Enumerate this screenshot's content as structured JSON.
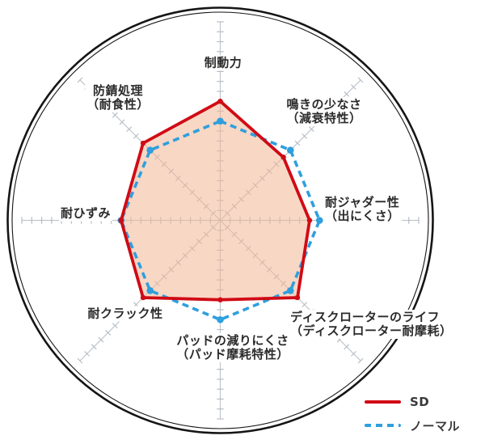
{
  "chart_data": {
    "type": "radar",
    "title": "",
    "start": "top",
    "direction": "clockwise",
    "axes": [
      "制動力",
      "鳴きの少なさ（減衰特性）",
      "耐ジャダー性（出にくさ）",
      "ディスクローターのライフ（ディスクローター耐摩耗）",
      "パッドの減りにくさ（パッド摩耗特性）",
      "耐クラック性",
      "耐ひずみ",
      "防錆処理（耐食性）"
    ],
    "scale": {
      "min": 0,
      "max": 10,
      "tick": 0.5
    },
    "series": [
      {
        "name": "SD",
        "style": "solid",
        "color": "#d00b15",
        "fill": "rgba(242,183,149,0.55)",
        "values": [
          6,
          4.5,
          4.5,
          5.5,
          4,
          5.5,
          5,
          5.5
        ]
      },
      {
        "name": "ノーマル",
        "style": "dashed",
        "color": "#2f9fdd",
        "fill": "none",
        "values": [
          5,
          5,
          5,
          5,
          5,
          5,
          5,
          5
        ]
      }
    ],
    "axis_color": "#c2c6cb",
    "tick_color": "#b6bdc6",
    "ring_color": "#151515",
    "legend_position": "bottom-right",
    "grid": "ticks-only"
  },
  "labels": {
    "top": {
      "line1": "制動力"
    },
    "top_right": {
      "line1": "鳴きの少なさ",
      "line2": "（減衰特性）"
    },
    "right": {
      "line1": "耐ジャダー性",
      "line2": "（出にくさ）"
    },
    "bottom_right": {
      "line1": "ディスクローターのライフ",
      "line2": "（ディスクローター耐摩耗）"
    },
    "bottom": {
      "line1": "パッドの減りにくさ",
      "line2": "（パッド摩耗特性）"
    },
    "bottom_left": {
      "line1": "耐クラック性"
    },
    "left": {
      "line1": "耐ひずみ"
    },
    "top_left": {
      "line1": "防錆処理",
      "line2": "（耐食性）"
    }
  },
  "legend": {
    "items": [
      {
        "label": "SD"
      },
      {
        "label": "ノーマル"
      }
    ]
  },
  "colors": {
    "sd_red": "#d00b15",
    "normal_blue": "#2f9fdd",
    "fill_peach": "rgba(242,183,149,0.55)",
    "label_text": "#2b2b2b"
  }
}
